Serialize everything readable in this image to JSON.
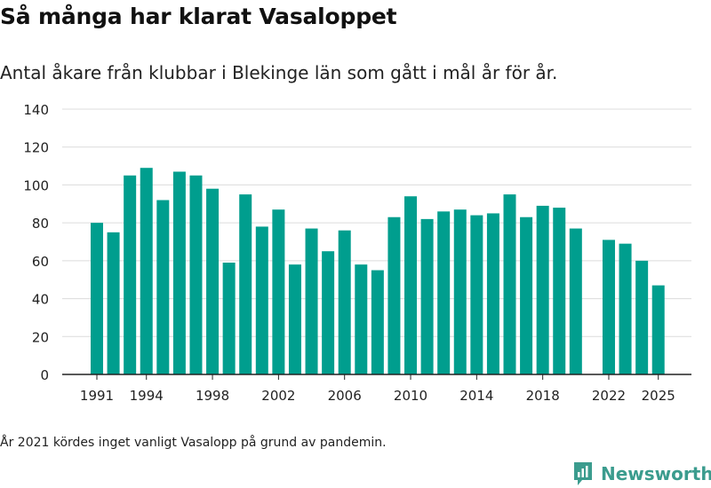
{
  "title": "Så många har klarat Vasaloppet",
  "subtitle": "Antal åkare från klubbar i Blekinge län som gått i mål år för år.",
  "footnote": "År 2021 kördes inget vanligt Vasalopp på grund av pandemin.",
  "brand": {
    "name": "Newsworthy",
    "icon": "newsworthy-logo-icon",
    "color": "#3b9c8e"
  },
  "chart_data": {
    "type": "bar",
    "color": "#009e8e",
    "categories": [
      1991,
      1992,
      1993,
      1994,
      1995,
      1996,
      1997,
      1998,
      1999,
      2000,
      2001,
      2002,
      2003,
      2004,
      2005,
      2006,
      2007,
      2008,
      2009,
      2010,
      2011,
      2012,
      2013,
      2014,
      2015,
      2016,
      2017,
      2018,
      2019,
      2020,
      2021,
      2022,
      2023,
      2024,
      2025
    ],
    "values": [
      80,
      75,
      105,
      109,
      92,
      107,
      105,
      98,
      59,
      95,
      78,
      87,
      58,
      77,
      65,
      76,
      58,
      55,
      83,
      94,
      82,
      86,
      87,
      84,
      85,
      95,
      83,
      89,
      88,
      77,
      null,
      71,
      69,
      60,
      47
    ],
    "x_tick_labels": [
      "1991",
      "1994",
      "1998",
      "2002",
      "2006",
      "2010",
      "2014",
      "2018",
      "2022",
      "2025"
    ],
    "y_ticks": [
      0,
      20,
      40,
      60,
      80,
      100,
      120,
      140
    ],
    "ylim": [
      0,
      140
    ],
    "grid": true,
    "legend": "none"
  }
}
